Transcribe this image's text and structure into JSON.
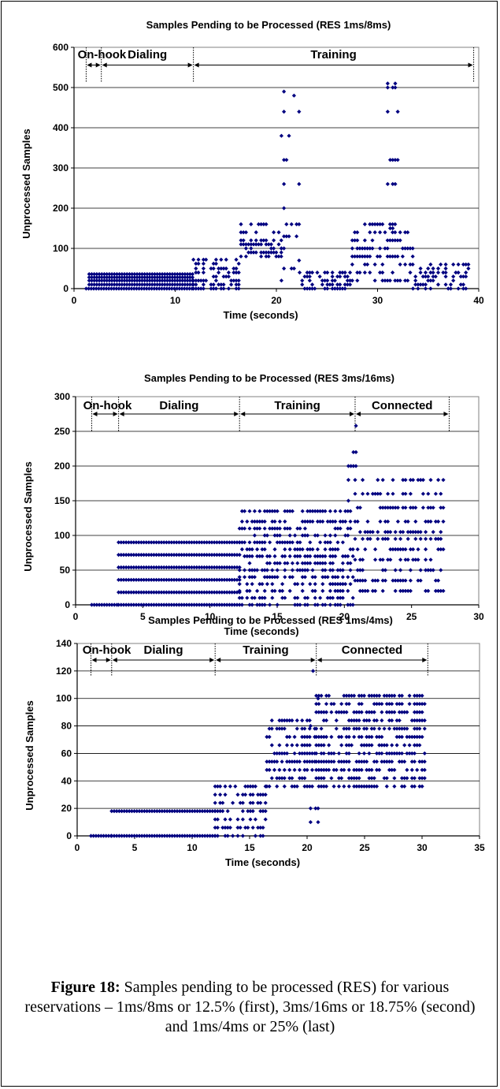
{
  "chart_data": [
    {
      "type": "scatter",
      "title": "Samples Pending to be Processed (RES 1ms/8ms)",
      "xlabel": "Time (seconds)",
      "ylabel": "Unprocessed Samples",
      "xlim": [
        0,
        40
      ],
      "ylim": [
        0,
        600
      ],
      "xticks": [
        0,
        10,
        20,
        30,
        40
      ],
      "yticks": [
        0,
        100,
        200,
        300,
        400,
        500,
        600
      ],
      "grid": true,
      "marker_color": "#000080",
      "phases": [
        {
          "label": "On-hook",
          "start": 1.2,
          "end": 2.7
        },
        {
          "label": "Dialing",
          "start": 2.7,
          "end": 11.8
        },
        {
          "label": "Training",
          "start": 11.8,
          "end": 39.5
        }
      ],
      "series": [
        {
          "segments": [
            {
              "t": [
                1.2,
                11.8
              ],
              "levels": [
                0
              ]
            },
            {
              "t": [
                1.5,
                11.8
              ],
              "levels": [
                10,
                20,
                28,
                36
              ]
            },
            {
              "t": [
                11.8,
                16.5
              ],
              "levels": [
                0,
                10,
                20,
                30,
                40,
                50,
                62,
                72
              ],
              "density": 0.5
            },
            {
              "t": [
                16.5,
                20.5
              ],
              "levels": [
                80,
                90,
                100,
                110,
                120,
                140,
                160
              ],
              "density": 0.55
            },
            {
              "t": [
                20.5,
                22.3
              ],
              "levels": [
                20,
                50,
                70,
                100,
                130,
                160,
                200,
                260,
                320,
                380,
                440,
                480,
                490
              ],
              "density": 0.3
            },
            {
              "t": [
                22.3,
                27.5
              ],
              "levels": [
                0,
                10,
                20,
                30,
                40
              ],
              "density": 0.5
            },
            {
              "t": [
                27.5,
                33.5
              ],
              "levels": [
                20,
                40,
                60,
                80,
                100,
                120,
                140,
                160
              ],
              "density": 0.45
            },
            {
              "t": [
                31.0,
                32.0
              ],
              "levels": [
                150,
                200,
                260,
                320,
                380,
                440,
                500,
                510
              ],
              "density": 0.4
            },
            {
              "t": [
                33.5,
                39.2
              ],
              "levels": [
                0,
                10,
                20,
                30,
                40,
                50,
                60
              ],
              "density": 0.4
            }
          ]
        }
      ]
    },
    {
      "type": "scatter",
      "title": "Samples Pending to be Processed (RES 3ms/16ms)",
      "xlabel": "Time (seconds)",
      "ylabel": "Unprocessed Samples",
      "xlim": [
        0,
        30
      ],
      "ylim": [
        0,
        300
      ],
      "xticks": [
        0,
        5,
        10,
        15,
        20,
        25,
        30
      ],
      "yticks": [
        0,
        50,
        100,
        150,
        200,
        250,
        300
      ],
      "grid": true,
      "marker_color": "#000080",
      "phases": [
        {
          "label": "On-hook",
          "start": 1.2,
          "end": 3.2
        },
        {
          "label": "Dialing",
          "start": 3.2,
          "end": 12.2
        },
        {
          "label": "Training",
          "start": 12.2,
          "end": 20.8
        },
        {
          "label": "Connected",
          "start": 20.8,
          "end": 27.8
        }
      ],
      "series": [
        {
          "segments": [
            {
              "t": [
                1.2,
                3.2
              ],
              "levels": [
                0
              ]
            },
            {
              "t": [
                3.2,
                12.2
              ],
              "levels": [
                0,
                18,
                36,
                54,
                72,
                90
              ]
            },
            {
              "t": [
                12.2,
                20.8
              ],
              "levels": [
                0,
                10,
                20,
                30,
                40,
                50,
                60,
                70,
                80,
                90,
                100,
                110,
                120,
                135
              ],
              "density": 0.55
            },
            {
              "t": [
                20.3,
                21.0
              ],
              "levels": [
                150,
                180,
                200,
                220,
                258
              ],
              "density": 0.35
            },
            {
              "t": [
                20.8,
                27.5
              ],
              "levels": [
                20,
                35,
                50,
                65,
                80,
                95,
                105,
                120,
                140,
                160,
                180
              ],
              "density": 0.5
            }
          ]
        }
      ]
    },
    {
      "type": "scatter",
      "title": "Samples Pending to be Processed (RES 1ms/4ms)",
      "xlabel": "Time (seconds)",
      "ylabel": "Unprocessed Samples",
      "xlim": [
        0,
        35
      ],
      "ylim": [
        0,
        140
      ],
      "xticks": [
        0,
        5,
        10,
        15,
        20,
        25,
        30,
        35
      ],
      "yticks": [
        0,
        20,
        40,
        60,
        80,
        100,
        120,
        140
      ],
      "grid": true,
      "marker_color": "#000080",
      "phases": [
        {
          "label": "On-hook",
          "start": 1.2,
          "end": 3.0
        },
        {
          "label": "Dialing",
          "start": 3.0,
          "end": 12.0
        },
        {
          "label": "Training",
          "start": 12.0,
          "end": 20.8
        },
        {
          "label": "Connected",
          "start": 20.8,
          "end": 30.5
        }
      ],
      "series": [
        {
          "segments": [
            {
              "t": [
                1.2,
                3.0
              ],
              "levels": [
                0
              ]
            },
            {
              "t": [
                3.0,
                12.0
              ],
              "levels": [
                0,
                18
              ]
            },
            {
              "t": [
                12.0,
                16.5
              ],
              "levels": [
                0,
                6,
                12,
                18,
                24,
                30,
                36
              ],
              "density": 0.55
            },
            {
              "t": [
                16.5,
                20.8
              ],
              "levels": [
                36,
                42,
                48,
                54,
                60,
                66,
                72,
                78,
                84
              ],
              "density": 0.6
            },
            {
              "t": [
                20.3,
                21.0
              ],
              "levels": [
                0,
                10,
                20,
                40,
                80,
                100,
                110,
                120
              ],
              "density": 0.35
            },
            {
              "t": [
                20.8,
                30.3
              ],
              "levels": [
                36,
                42,
                48,
                54,
                60,
                66,
                72,
                78,
                84,
                90,
                96,
                102
              ],
              "density": 0.65
            }
          ]
        }
      ]
    }
  ],
  "caption": {
    "label": "Figure 18:",
    "text": " Samples pending to be processed (RES) for various reservations – 1ms/8ms or 12.5% (first), 3ms/16ms or 18.75% (second) and 1ms/4ms or 25% (last)"
  }
}
